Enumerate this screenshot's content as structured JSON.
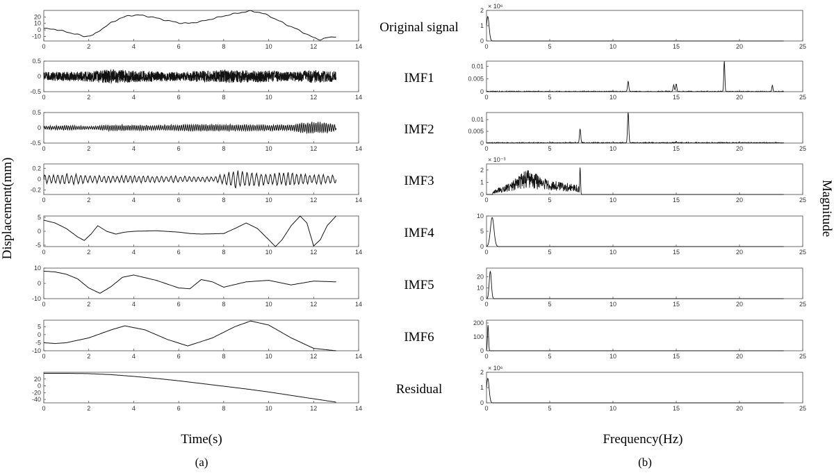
{
  "chart_data": {
    "type": "line",
    "layout": "8x2 grid of subplots (time-domain EMD components on the left, amplitude spectra on the right)",
    "panel_labels": [
      "(a)",
      "(b)"
    ],
    "row_labels": [
      "Original signal",
      "IMF1",
      "IMF2",
      "IMF3",
      "IMF4",
      "IMF5",
      "IMF6",
      "Residual"
    ],
    "left": {
      "xlabel": "Time(s)",
      "ylabel": "Displacement(mm)",
      "xlim": [
        0,
        14
      ],
      "xticks": [
        "0",
        "2",
        "4",
        "6",
        "8",
        "10",
        "12",
        "14"
      ],
      "signal_end": 13,
      "subplots": [
        {
          "name": "Original signal",
          "ylim": [
            -17,
            30
          ],
          "yticks": [
            "20",
            "10",
            "0",
            "-10"
          ],
          "series": [
            {
              "x": [
                0,
                0.5,
                1,
                1.5,
                1.8,
                2.2,
                2.6,
                3,
                3.4,
                3.8,
                4.2,
                4.8,
                5.4,
                6,
                6.4,
                7,
                7.6,
                8.2,
                8.8,
                9.2,
                9.6,
                10,
                10.4,
                10.8,
                11.2,
                11.6,
                12,
                12.3,
                12.6,
                13
              ],
              "y": [
                2,
                1,
                -3,
                -7,
                -10,
                -8,
                2,
                11,
                18,
                22,
                23,
                20,
                15,
                11,
                10,
                13,
                18,
                23,
                27,
                29,
                27,
                22,
                15,
                8,
                2,
                -5,
                -12,
                -15,
                -12,
                -10
              ]
            }
          ]
        },
        {
          "name": "IMF1",
          "ylim": [
            -0.5,
            0.5
          ],
          "yticks": [
            "0.5",
            "0",
            "-0.5"
          ],
          "series": [
            {
              "kind": "noise",
              "amplitude": 0.15,
              "cycles_per_s": 25,
              "envelope_x": [
                0,
                2,
                3,
                4,
                6,
                8,
                10,
                11,
                12,
                13
              ],
              "envelope_y": [
                0.6,
                0.7,
                1.0,
                0.8,
                0.6,
                0.9,
                0.8,
                0.6,
                0.9,
                0.7
              ]
            }
          ]
        },
        {
          "name": "IMF2",
          "ylim": [
            -0.5,
            0.5
          ],
          "yticks": [
            "0.5",
            "0",
            "-0.5"
          ],
          "series": [
            {
              "kind": "oscillation",
              "amplitude": 0.15,
              "cycles_per_s": 11,
              "envelope_x": [
                0,
                1,
                2,
                3,
                5,
                7,
                9,
                11,
                11.5,
                12.5,
                13
              ],
              "envelope_y": [
                0.3,
                0.5,
                0.3,
                0.6,
                0.5,
                0.7,
                0.6,
                0.6,
                1.0,
                1.2,
                0.6
              ]
            }
          ]
        },
        {
          "name": "IMF3",
          "ylim": [
            -0.28,
            0.28
          ],
          "yticks": [
            "0.2",
            "0",
            "-0.2"
          ],
          "series": [
            {
              "kind": "oscillation",
              "amplitude": 0.1,
              "cycles_per_s": 5,
              "envelope_x": [
                0,
                1,
                2,
                4,
                6,
                7.5,
                8,
                8.5,
                9,
                10,
                11,
                12,
                13
              ],
              "envelope_y": [
                0.7,
                0.9,
                0.6,
                0.6,
                0.5,
                0.4,
                0.8,
                1.6,
                1.2,
                1.0,
                1.1,
                0.8,
                0.7
              ]
            }
          ]
        },
        {
          "name": "IMF4",
          "ylim": [
            -5.5,
            5.5
          ],
          "yticks": [
            "5",
            "0",
            "-5"
          ],
          "series": [
            {
              "x": [
                0,
                0.5,
                1,
                1.5,
                1.8,
                2.1,
                2.4,
                2.8,
                3.2,
                3.6,
                4,
                5,
                6,
                6.5,
                7,
                8,
                8.5,
                9,
                9.5,
                10,
                10.3,
                10.6,
                11,
                11.4,
                11.7,
                12,
                12.3,
                12.6,
                13
              ],
              "y": [
                4,
                3,
                1,
                -2,
                -3.3,
                -1,
                2,
                0,
                -1,
                -0.3,
                0,
                0.2,
                -0.3,
                -0.8,
                -1,
                -0.8,
                1,
                3,
                1,
                -3,
                -5.5,
                -3,
                2,
                5.5,
                3,
                -5.3,
                -3,
                2,
                5.5
              ]
            }
          ]
        },
        {
          "name": "IMF5",
          "ylim": [
            -10,
            10
          ],
          "yticks": [
            "10",
            "0",
            "-10"
          ],
          "series": [
            {
              "x": [
                0,
                0.5,
                1,
                1.5,
                2,
                2.5,
                3,
                3.5,
                4,
                5,
                6,
                6.5,
                7,
                7.5,
                8,
                9,
                10,
                11,
                12,
                13
              ],
              "y": [
                8,
                7.5,
                6,
                3,
                -3,
                -6.5,
                -2,
                4,
                5.5,
                2,
                -3,
                -3.5,
                2.5,
                1,
                -2.5,
                1,
                2,
                -1,
                1.5,
                1
              ]
            }
          ]
        },
        {
          "name": "IMF6",
          "ylim": [
            -10,
            9
          ],
          "yticks": [
            "5",
            "0",
            "-5",
            "-10"
          ],
          "series": [
            {
              "x": [
                0,
                0.5,
                1,
                2,
                3,
                3.6,
                4.5,
                5.5,
                6.4,
                7.5,
                8.5,
                9.2,
                10,
                11,
                12,
                13
              ],
              "y": [
                -5,
                -5.5,
                -5,
                -2,
                3,
                5.5,
                3,
                -3,
                -7,
                -2,
                5,
                8.5,
                6,
                -2,
                -8.5,
                -10
              ]
            }
          ]
        },
        {
          "name": "Residual",
          "ylim": [
            -50,
            40
          ],
          "yticks": [
            "20",
            "0",
            "-20",
            "-40"
          ],
          "series": [
            {
              "x": [
                0,
                1,
                2,
                3,
                4,
                5,
                6,
                7,
                8,
                9,
                10,
                11,
                12,
                13
              ],
              "y": [
                37,
                37,
                36,
                33,
                28,
                22,
                15,
                7,
                -1,
                -9,
                -18,
                -28,
                -38,
                -48
              ]
            }
          ]
        }
      ]
    },
    "right": {
      "xlabel": "Frequency(Hz)",
      "ylabel": "Magnitude",
      "xlim": [
        0,
        25
      ],
      "xticks": [
        "0",
        "5",
        "10",
        "15",
        "20",
        "25"
      ],
      "subplots": [
        {
          "name": "Original signal",
          "ylim": [
            0,
            2
          ],
          "yticks": [
            "2",
            "1",
            "0"
          ],
          "exponent": "× 10^6",
          "peaks": [
            {
              "f": 0.1,
              "mag": 1.6,
              "width": 0.15
            }
          ]
        },
        {
          "name": "IMF1",
          "ylim": [
            0,
            0.012
          ],
          "yticks": [
            "0.01",
            "0.005",
            "0"
          ],
          "peaks": [
            {
              "f": 11.2,
              "mag": 0.004,
              "width": 0.07
            },
            {
              "f": 14.8,
              "mag": 0.0025,
              "width": 0.07
            },
            {
              "f": 15.0,
              "mag": 0.003,
              "width": 0.07
            },
            {
              "f": 18.8,
              "mag": 0.012,
              "width": 0.06
            },
            {
              "f": 22.6,
              "mag": 0.0025,
              "width": 0.06
            }
          ],
          "noise": 0.0003
        },
        {
          "name": "IMF2",
          "ylim": [
            0,
            0.013
          ],
          "yticks": [
            "0.01",
            "0.005",
            "0"
          ],
          "peaks": [
            {
              "f": 7.4,
              "mag": 0.006,
              "width": 0.07
            },
            {
              "f": 11.2,
              "mag": 0.013,
              "width": 0.07
            },
            {
              "f": 15.0,
              "mag": 0.0005,
              "width": 0.07
            }
          ],
          "noise": 0.0004
        },
        {
          "name": "IMF3",
          "ylim": [
            0,
            0.0025
          ],
          "yticks": [
            "2",
            "1",
            "0"
          ],
          "exponent": "× 10^-3",
          "peaks": [
            {
              "f": 7.4,
              "mag": 0.0022,
              "width": 0.05
            }
          ],
          "band": {
            "from": 0.5,
            "to": 7.3,
            "envelope_f": [
              0.5,
              1.5,
              2.5,
              3.2,
              4,
              5,
              6,
              7.3
            ],
            "envelope_mag": [
              0.0003,
              0.0008,
              0.0015,
              0.0021,
              0.0017,
              0.0012,
              0.001,
              0.0008
            ]
          }
        },
        {
          "name": "IMF4",
          "ylim": [
            0,
            10
          ],
          "yticks": [
            "10",
            "5",
            "0"
          ],
          "peaks": [
            {
              "f": 0.45,
              "mag": 9.5,
              "width": 0.2
            }
          ]
        },
        {
          "name": "IMF5",
          "ylim": [
            0,
            28
          ],
          "yticks": [
            "20",
            "10",
            "0"
          ],
          "peaks": [
            {
              "f": 0.3,
              "mag": 25,
              "width": 0.12
            }
          ]
        },
        {
          "name": "IMF6",
          "ylim": [
            0,
            220
          ],
          "yticks": [
            "200",
            "100",
            "0"
          ],
          "peaks": [
            {
              "f": 0.12,
              "mag": 185,
              "width": 0.06
            }
          ]
        },
        {
          "name": "Residual",
          "ylim": [
            0,
            2
          ],
          "yticks": [
            "2",
            "1",
            "0"
          ],
          "exponent": "× 10^6",
          "peaks": [
            {
              "f": 0.1,
              "mag": 1.6,
              "width": 0.15
            }
          ]
        }
      ]
    }
  }
}
